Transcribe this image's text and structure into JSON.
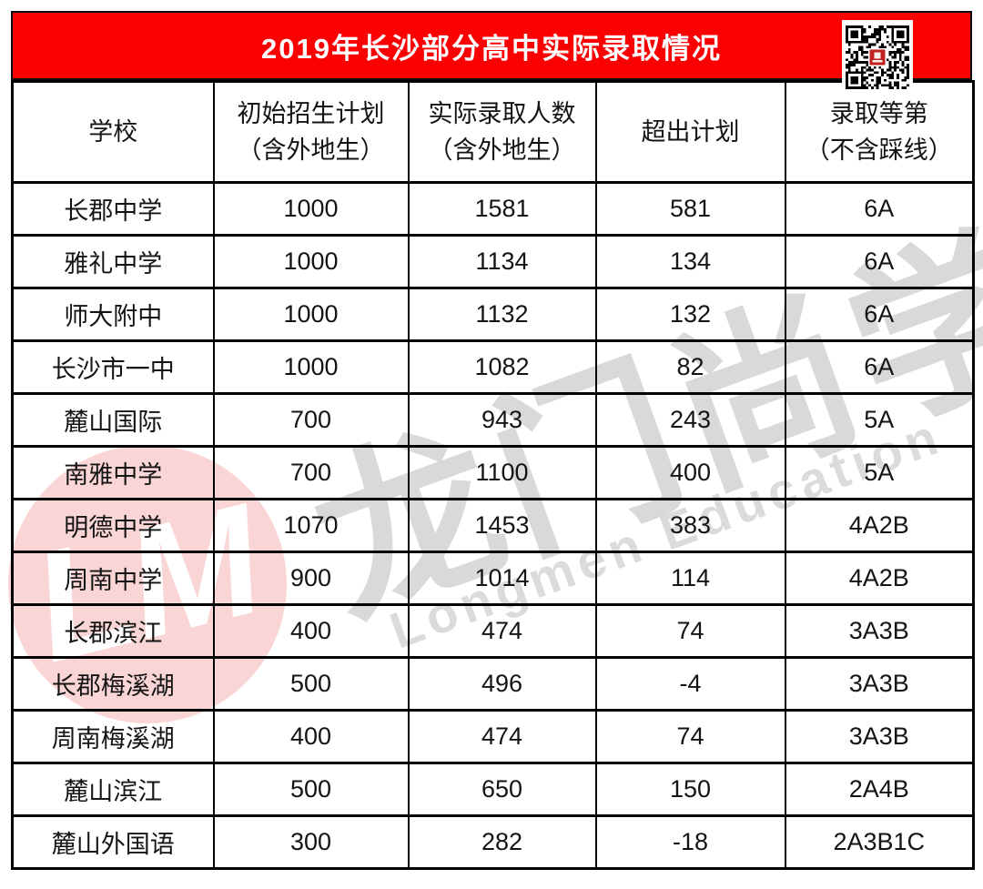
{
  "banner": {
    "title": "2019年长沙部分高中实际录取情况",
    "bg_color": "#fb0000",
    "text_color": "#ffffff"
  },
  "table": {
    "header_lines": [
      {
        "l1": "学校"
      },
      {
        "l1": "初始招生计划",
        "l2": "（含外地生）"
      },
      {
        "l1": "实际录取人数",
        "l2": "（含外地生）"
      },
      {
        "l1": "超出计划"
      },
      {
        "l1": "录取等第",
        "l2": "（不含踩线）"
      }
    ]
  },
  "chart_data": {
    "type": "table",
    "title": "2019年长沙部分高中实际录取情况",
    "columns": [
      "学校",
      "初始招生计划（含外地生）",
      "实际录取人数（含外地生）",
      "超出计划",
      "录取等第（不含踩线）"
    ],
    "rows": [
      [
        "长郡中学",
        "1000",
        "1581",
        "581",
        "6A"
      ],
      [
        "雅礼中学",
        "1000",
        "1134",
        "134",
        "6A"
      ],
      [
        "师大附中",
        "1000",
        "1132",
        "132",
        "6A"
      ],
      [
        "长沙市一中",
        "1000",
        "1082",
        "82",
        "6A"
      ],
      [
        "麓山国际",
        "700",
        "943",
        "243",
        "5A"
      ],
      [
        "南雅中学",
        "700",
        "1100",
        "400",
        "5A"
      ],
      [
        "明德中学",
        "1070",
        "1453",
        "383",
        "4A2B"
      ],
      [
        "周南中学",
        "900",
        "1014",
        "114",
        "4A2B"
      ],
      [
        "长郡滨江",
        "400",
        "474",
        "74",
        "3A3B"
      ],
      [
        "长郡梅溪湖",
        "500",
        "496",
        "-4",
        "3A3B"
      ],
      [
        "周南梅溪湖",
        "400",
        "474",
        "74",
        "3A3B"
      ],
      [
        "麓山滨江",
        "500",
        "650",
        "150",
        "2A4B"
      ],
      [
        "麓山外国语",
        "300",
        "282",
        "-18",
        "2A3B1C"
      ]
    ]
  },
  "watermark": {
    "cn": "龙门尚学",
    "en": "Longmen Education",
    "monogram": "LM",
    "logo_color": "#e24040"
  },
  "icons": {
    "qr_code": "qr-code-image"
  },
  "colors": {
    "banner_red": "#fb0000",
    "qr_center_red": "#c0211e",
    "border_black": "#000000"
  }
}
